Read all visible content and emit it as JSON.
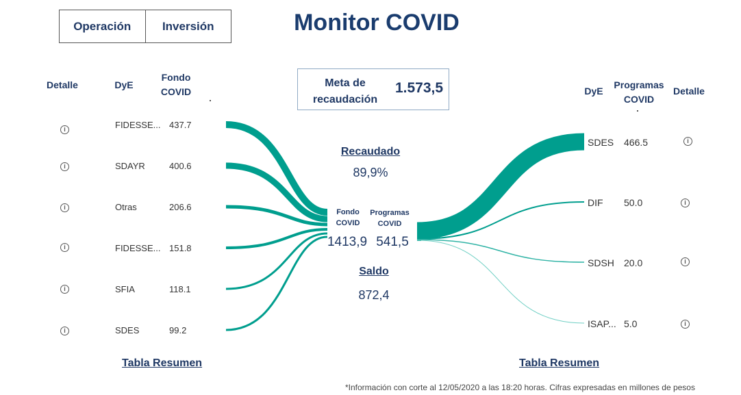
{
  "tabs": [
    {
      "label": "Operación"
    },
    {
      "label": "Inversión"
    }
  ],
  "title": "Monitor COVID",
  "left": {
    "headers": {
      "detalle": "Detalle",
      "dye": "DyE",
      "fondo": "Fondo\nCOVID"
    },
    "rows": [
      {
        "name": "FIDESSE...",
        "value": "437.7"
      },
      {
        "name": "SDAYR",
        "value": "400.6"
      },
      {
        "name": "Otras",
        "value": "206.6"
      },
      {
        "name": "FIDESSE...",
        "value": "151.8"
      },
      {
        "name": "SFIA",
        "value": "118.1"
      },
      {
        "name": "SDES",
        "value": "99.2"
      }
    ],
    "link": "Tabla Resumen"
  },
  "right": {
    "headers": {
      "dye": "DyE",
      "programas": "Programas\nCOVID",
      "detalle": "Detalle"
    },
    "rows": [
      {
        "name": "SDES",
        "value": "466.5"
      },
      {
        "name": "DIF",
        "value": "50.0"
      },
      {
        "name": "SDSH",
        "value": "20.0"
      },
      {
        "name": "ISAP...",
        "value": "5.0"
      }
    ],
    "link": "Tabla Resumen"
  },
  "meta": {
    "label": "Meta de\nrecaudación",
    "value": "1.573,5"
  },
  "recaudado": {
    "label": "Recaudado",
    "value": "89,9%"
  },
  "saldo": {
    "label": "Saldo",
    "value": "872,4"
  },
  "center": {
    "fondo_label": "Fondo\nCOVID",
    "fondo_value": "1413,9",
    "programas_label": "Programas\nCOVID",
    "programas_value": "541,5"
  },
  "footnote": "*Información con corte al 12/05/2020 a las 18:20 horas. Cifras expresadas en millones de pesos",
  "colors": {
    "flow": "#009e8e",
    "flow_light": "#6fcfc4",
    "navy": "#1f3864"
  }
}
